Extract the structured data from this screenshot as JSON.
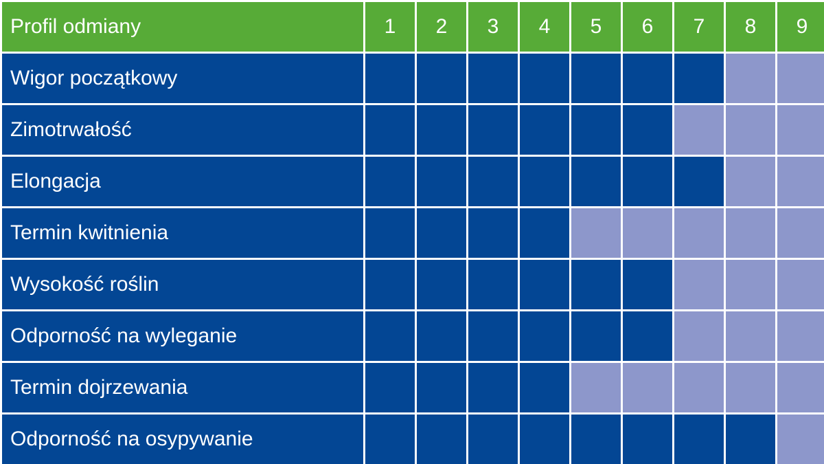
{
  "colors": {
    "header_bg": "#57ab37",
    "filled": "#034694",
    "empty": "#8d97cb",
    "text": "#ffffff"
  },
  "chart_data": {
    "type": "table",
    "title": "",
    "header": "Profil odmiany",
    "scale": [
      "1",
      "2",
      "3",
      "4",
      "5",
      "6",
      "7",
      "8",
      "9"
    ],
    "max": 9,
    "rows": [
      {
        "label": "Wigor początkowy",
        "value": 7
      },
      {
        "label": "Zimotrwałość",
        "value": 6
      },
      {
        "label": "Elongacja",
        "value": 7
      },
      {
        "label": "Termin kwitnienia",
        "value": 4
      },
      {
        "label": "Wysokość roślin",
        "value": 6
      },
      {
        "label": "Odporność na wyleganie",
        "value": 6
      },
      {
        "label": "Termin dojrzewania",
        "value": 4
      },
      {
        "label": "Odporność na osypywanie",
        "value": 8
      }
    ]
  }
}
